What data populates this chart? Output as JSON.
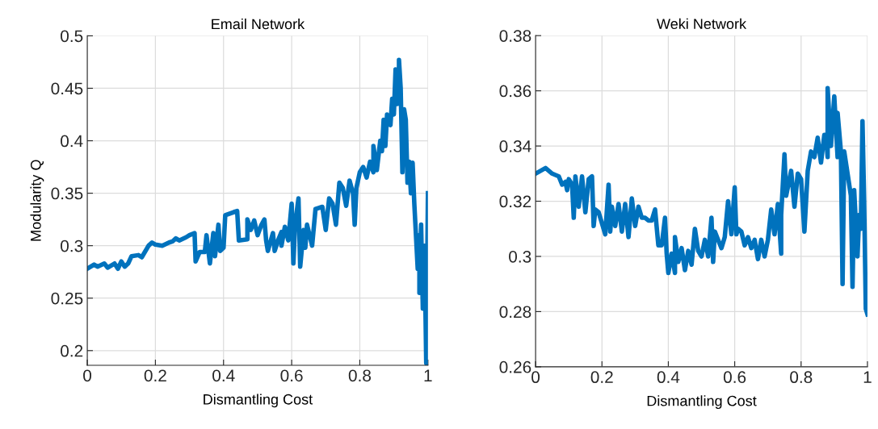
{
  "chart_data": [
    {
      "type": "line",
      "title": "Email Network",
      "xlabel": "Dismantling Cost",
      "ylabel": "Modularity Q",
      "grid": true,
      "xlim": [
        0,
        1
      ],
      "xticks": [
        0,
        0.2,
        0.4,
        0.6,
        0.8,
        1
      ],
      "ylim": [
        0.186,
        0.5
      ],
      "yticks": [
        0.2,
        0.25,
        0.3,
        0.35,
        0.4,
        0.45,
        0.5
      ],
      "series": [
        {
          "color": "#0072bd",
          "x": [
            0,
            0.02,
            0.03,
            0.05,
            0.06,
            0.08,
            0.09,
            0.1,
            0.11,
            0.12,
            0.13,
            0.15,
            0.16,
            0.18,
            0.19,
            0.2,
            0.22,
            0.24,
            0.25,
            0.26,
            0.27,
            0.29,
            0.3,
            0.315,
            0.318,
            0.33,
            0.345,
            0.35,
            0.36,
            0.37,
            0.375,
            0.385,
            0.39,
            0.4,
            0.405,
            0.43,
            0.44,
            0.445,
            0.47,
            0.47,
            0.48,
            0.49,
            0.5,
            0.51,
            0.52,
            0.525,
            0.53,
            0.545,
            0.55,
            0.56,
            0.57,
            0.57,
            0.58,
            0.59,
            0.6,
            0.605,
            0.61,
            0.62,
            0.625,
            0.635,
            0.64,
            0.645,
            0.66,
            0.67,
            0.69,
            0.7,
            0.71,
            0.72,
            0.73,
            0.74,
            0.75,
            0.76,
            0.77,
            0.78,
            0.785,
            0.79,
            0.8,
            0.81,
            0.82,
            0.83,
            0.84,
            0.84,
            0.85,
            0.86,
            0.865,
            0.87,
            0.875,
            0.88,
            0.89,
            0.895,
            0.9,
            0.905,
            0.91,
            0.915,
            0.915,
            0.92,
            0.925,
            0.93,
            0.935,
            0.94,
            0.945,
            0.95,
            0.955,
            0.96,
            0.97,
            0.975,
            0.975,
            0.98,
            0.985,
            0.99,
            0.995,
            1.0
          ],
          "values": [
            0.278,
            0.282,
            0.28,
            0.283,
            0.279,
            0.283,
            0.278,
            0.285,
            0.28,
            0.283,
            0.29,
            0.291,
            0.289,
            0.3,
            0.303,
            0.301,
            0.3,
            0.303,
            0.304,
            0.307,
            0.305,
            0.308,
            0.31,
            0.312,
            0.285,
            0.294,
            0.294,
            0.31,
            0.283,
            0.312,
            0.29,
            0.32,
            0.295,
            0.298,
            0.329,
            0.332,
            0.333,
            0.305,
            0.306,
            0.325,
            0.315,
            0.324,
            0.31,
            0.319,
            0.325,
            0.305,
            0.295,
            0.312,
            0.295,
            0.305,
            0.313,
            0.3,
            0.318,
            0.305,
            0.34,
            0.283,
            0.32,
            0.345,
            0.28,
            0.315,
            0.298,
            0.32,
            0.3,
            0.335,
            0.337,
            0.315,
            0.345,
            0.34,
            0.32,
            0.36,
            0.355,
            0.338,
            0.362,
            0.35,
            0.32,
            0.355,
            0.37,
            0.375,
            0.365,
            0.38,
            0.37,
            0.395,
            0.372,
            0.4,
            0.39,
            0.42,
            0.395,
            0.425,
            0.415,
            0.44,
            0.425,
            0.468,
            0.435,
            0.45,
            0.477,
            0.45,
            0.37,
            0.43,
            0.42,
            0.36,
            0.38,
            0.35,
            0.379,
            0.34,
            0.278,
            0.31,
            0.255,
            0.32,
            0.24,
            0.3,
            0.188,
            0.35
          ]
        }
      ]
    },
    {
      "type": "line",
      "title": "Weki Network",
      "xlabel": "Dismantling Cost",
      "grid": true,
      "xlim": [
        0,
        1
      ],
      "xticks": [
        0,
        0.2,
        0.4,
        0.6,
        0.8,
        1
      ],
      "ylim": [
        0.26,
        0.38
      ],
      "yticks": [
        0.26,
        0.28,
        0.3,
        0.32,
        0.34,
        0.36,
        0.38
      ],
      "series": [
        {
          "color": "#0072bd",
          "x": [
            0,
            0.03,
            0.05,
            0.07,
            0.08,
            0.09,
            0.095,
            0.1,
            0.11,
            0.115,
            0.12,
            0.13,
            0.14,
            0.15,
            0.16,
            0.17,
            0.175,
            0.18,
            0.19,
            0.2,
            0.21,
            0.22,
            0.225,
            0.23,
            0.24,
            0.25,
            0.26,
            0.27,
            0.28,
            0.29,
            0.3,
            0.31,
            0.32,
            0.33,
            0.34,
            0.35,
            0.36,
            0.37,
            0.38,
            0.39,
            0.395,
            0.4,
            0.41,
            0.42,
            0.42,
            0.43,
            0.44,
            0.45,
            0.46,
            0.47,
            0.48,
            0.49,
            0.5,
            0.51,
            0.52,
            0.53,
            0.535,
            0.54,
            0.55,
            0.56,
            0.57,
            0.58,
            0.59,
            0.6,
            0.605,
            0.61,
            0.62,
            0.63,
            0.64,
            0.65,
            0.66,
            0.67,
            0.68,
            0.69,
            0.7,
            0.71,
            0.72,
            0.73,
            0.74,
            0.74,
            0.75,
            0.755,
            0.77,
            0.78,
            0.79,
            0.8,
            0.81,
            0.82,
            0.83,
            0.84,
            0.85,
            0.86,
            0.87,
            0.875,
            0.88,
            0.88,
            0.89,
            0.9,
            0.91,
            0.91,
            0.92,
            0.925,
            0.93,
            0.94,
            0.95,
            0.955,
            0.96,
            0.97,
            0.975,
            0.98,
            0.985,
            0.99,
            0.995,
            1.0
          ],
          "values": [
            0.33,
            0.332,
            0.33,
            0.329,
            0.326,
            0.327,
            0.324,
            0.328,
            0.326,
            0.314,
            0.329,
            0.318,
            0.329,
            0.316,
            0.328,
            0.329,
            0.311,
            0.317,
            0.316,
            0.312,
            0.308,
            0.326,
            0.309,
            0.318,
            0.311,
            0.319,
            0.309,
            0.319,
            0.307,
            0.321,
            0.311,
            0.318,
            0.314,
            0.314,
            0.313,
            0.313,
            0.317,
            0.304,
            0.304,
            0.314,
            0.301,
            0.294,
            0.301,
            0.294,
            0.307,
            0.298,
            0.303,
            0.295,
            0.302,
            0.297,
            0.31,
            0.302,
            0.3,
            0.306,
            0.3,
            0.314,
            0.298,
            0.309,
            0.306,
            0.303,
            0.307,
            0.32,
            0.308,
            0.325,
            0.308,
            0.31,
            0.309,
            0.304,
            0.307,
            0.303,
            0.306,
            0.299,
            0.306,
            0.3,
            0.306,
            0.317,
            0.308,
            0.319,
            0.301,
            0.315,
            0.337,
            0.322,
            0.331,
            0.318,
            0.33,
            0.328,
            0.309,
            0.331,
            0.338,
            0.336,
            0.343,
            0.334,
            0.344,
            0.344,
            0.336,
            0.361,
            0.34,
            0.358,
            0.336,
            0.352,
            0.338,
            0.29,
            0.338,
            0.33,
            0.322,
            0.289,
            0.324,
            0.3,
            0.315,
            0.31,
            0.349,
            0.32,
            0.281,
            0.279
          ]
        }
      ]
    }
  ]
}
